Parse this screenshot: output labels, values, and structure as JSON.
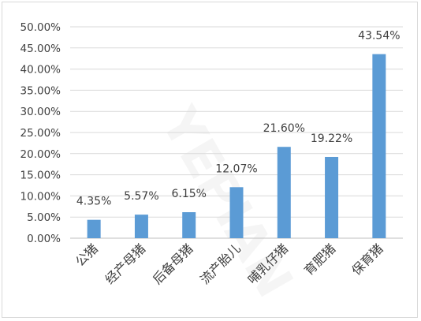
{
  "chart_data": {
    "type": "bar",
    "categories": [
      "公猪",
      "经产母猪",
      "后备母猪",
      "流产胎儿",
      "哺乳仔猪",
      "育肥猪",
      "保育猪"
    ],
    "values": [
      4.35,
      5.57,
      6.15,
      12.07,
      21.6,
      19.22,
      43.54
    ],
    "data_labels": [
      "4.35%",
      "5.57%",
      "6.15%",
      "12.07%",
      "21.60%",
      "19.22%",
      "43.54%"
    ],
    "y_ticks": [
      "0.00%",
      "5.00%",
      "10.00%",
      "15.00%",
      "20.00%",
      "25.00%",
      "30.00%",
      "35.00%",
      "40.00%",
      "45.00%",
      "50.00%"
    ],
    "ylim": [
      0,
      50
    ],
    "grid": true,
    "legend": "none",
    "title": "",
    "xlabel": "",
    "ylabel": "",
    "watermark": "YEPIAN",
    "colors": {
      "bar": "#5b9bd5",
      "grid": "#d9d9d9",
      "text": "#404040"
    }
  }
}
